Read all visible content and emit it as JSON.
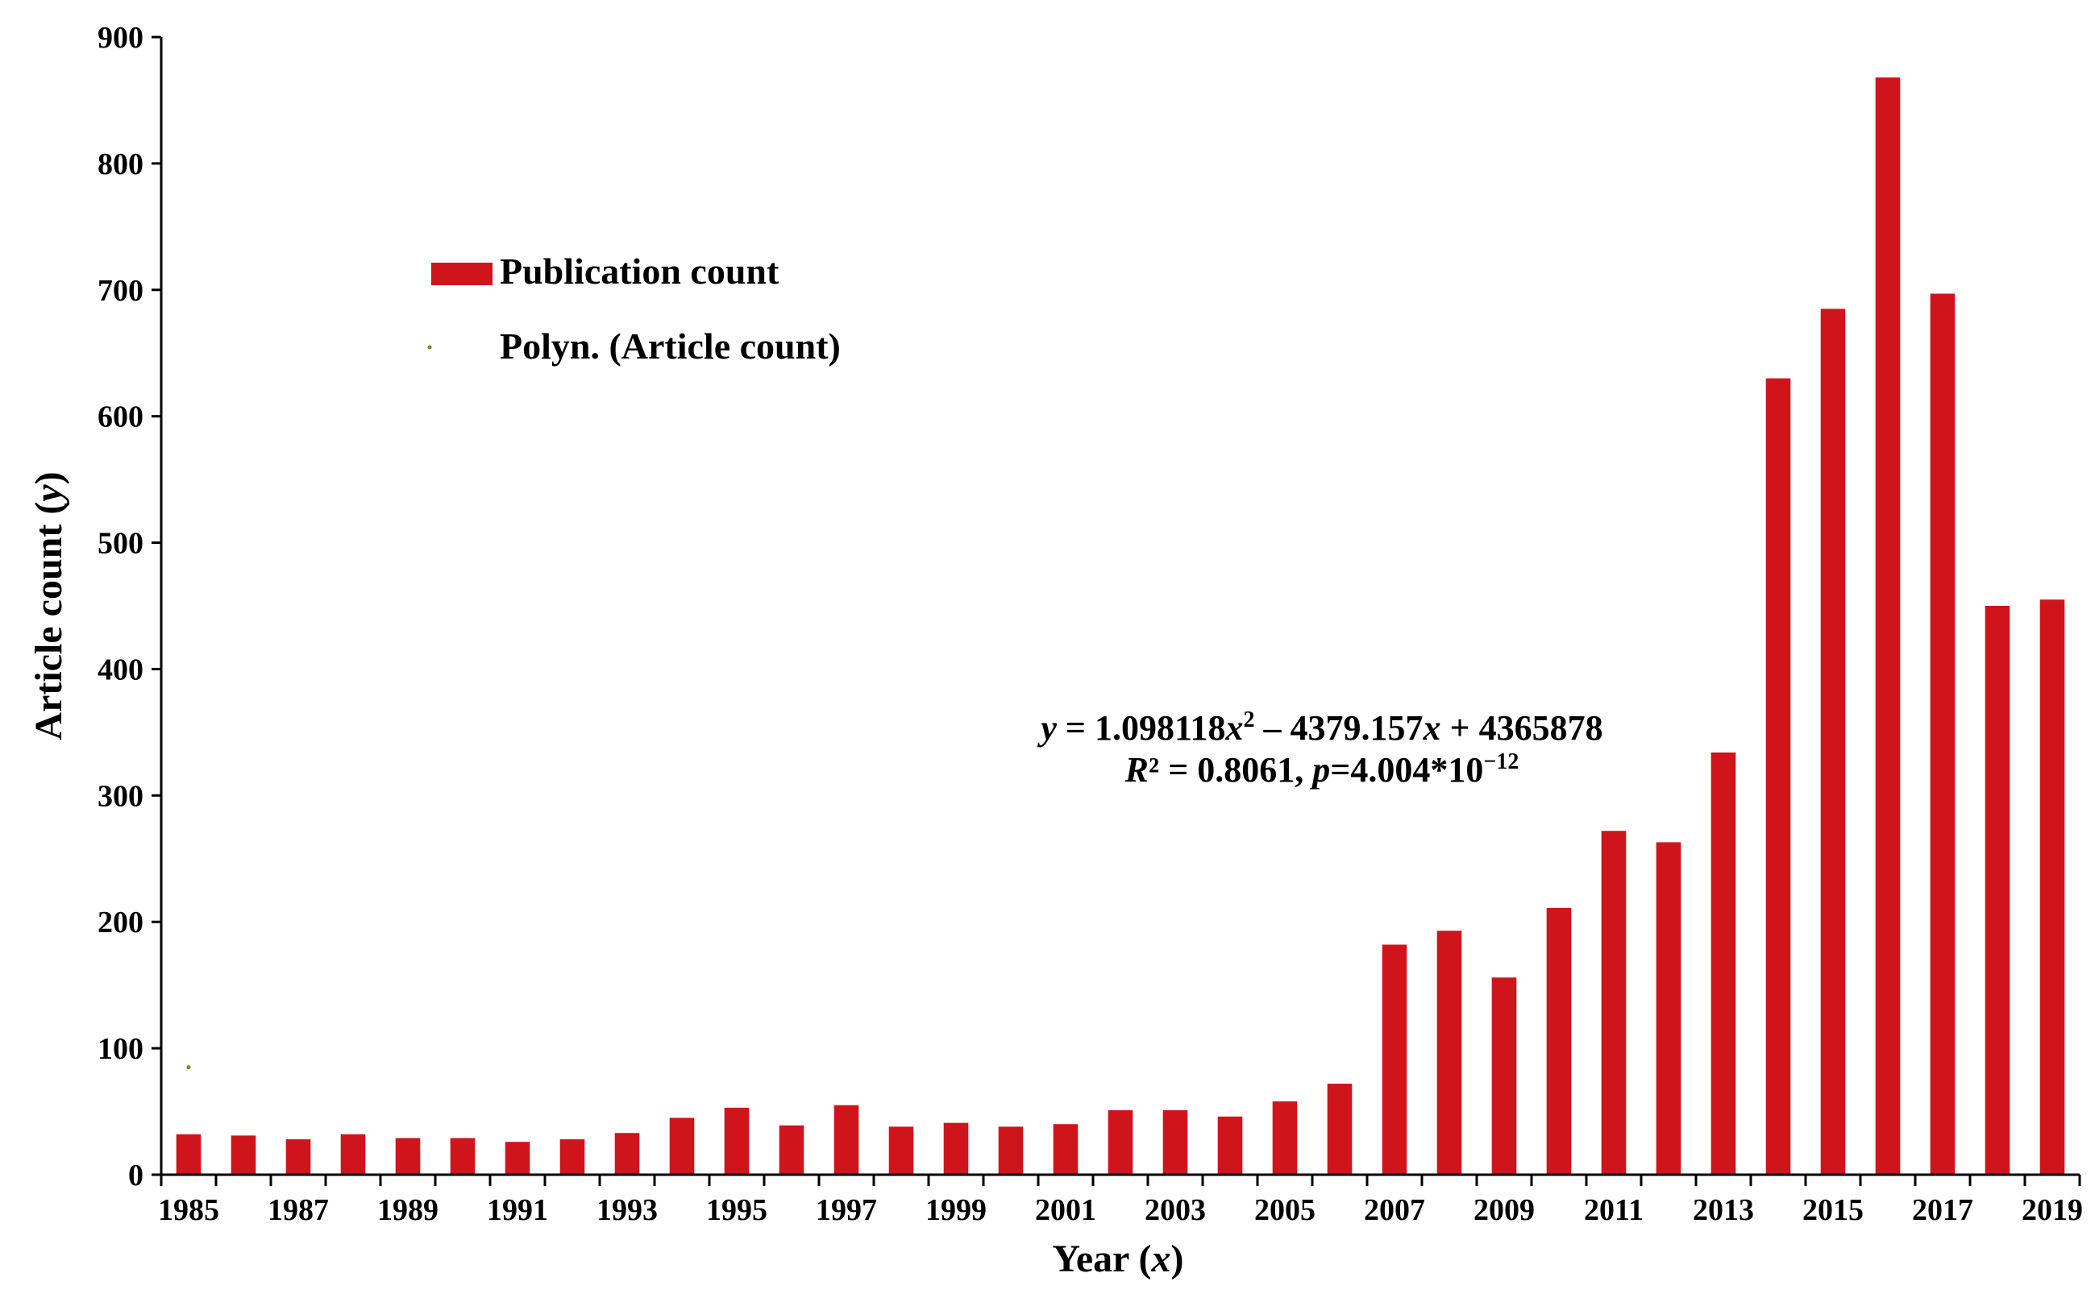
{
  "chart_data": {
    "type": "bar",
    "x": [
      1985,
      1986,
      1987,
      1988,
      1989,
      1990,
      1991,
      1992,
      1993,
      1994,
      1995,
      1996,
      1997,
      1998,
      1999,
      2000,
      2001,
      2002,
      2003,
      2004,
      2005,
      2006,
      2007,
      2008,
      2009,
      2010,
      2011,
      2012,
      2013,
      2014,
      2015,
      2016,
      2017,
      2018,
      2019
    ],
    "x_tick_labels": [
      "1985",
      "1987",
      "1989",
      "1991",
      "1993",
      "1995",
      "1997",
      "1999",
      "2001",
      "2003",
      "2005",
      "2007",
      "2009",
      "2011",
      "2013",
      "2015",
      "2017",
      "2019"
    ],
    "series": [
      {
        "name": "Publication count",
        "color": "#d0141c",
        "values": [
          32,
          31,
          28,
          32,
          29,
          29,
          26,
          28,
          33,
          45,
          53,
          39,
          55,
          38,
          41,
          38,
          40,
          51,
          51,
          46,
          58,
          72,
          182,
          193,
          156,
          211,
          272,
          263,
          334,
          630,
          685,
          868,
          697,
          450,
          455
        ]
      }
    ],
    "trendline": {
      "name": "Polyn. (Article count)",
      "color": "#6b8e23",
      "visible_points": [
        {
          "x": 1985,
          "y": 85
        }
      ]
    },
    "xlabel_text": "Year (",
    "xlabel_var": "x",
    "xlabel_close": ")",
    "ylabel_text": "Article count (",
    "ylabel_var": "y",
    "ylabel_close": ")",
    "ylim": [
      0,
      900
    ],
    "yticks": [
      0,
      100,
      200,
      300,
      400,
      500,
      600,
      700,
      800,
      900
    ],
    "grid": false,
    "legend_position": "top-left",
    "annotation": {
      "line1": {
        "y_var": "y",
        "eq_a": " = 1.098118",
        "x_var1": "x",
        "sq": "2",
        "eq_b": " – 4379.157",
        "x_var2": "x",
        "eq_c": " + 4365878"
      },
      "line2": {
        "r_var": "R",
        "r_rest": "² = 0.8061, ",
        "p_var": "p",
        "p_rest": "=4.004*10",
        "p_exp": "−12"
      }
    }
  }
}
